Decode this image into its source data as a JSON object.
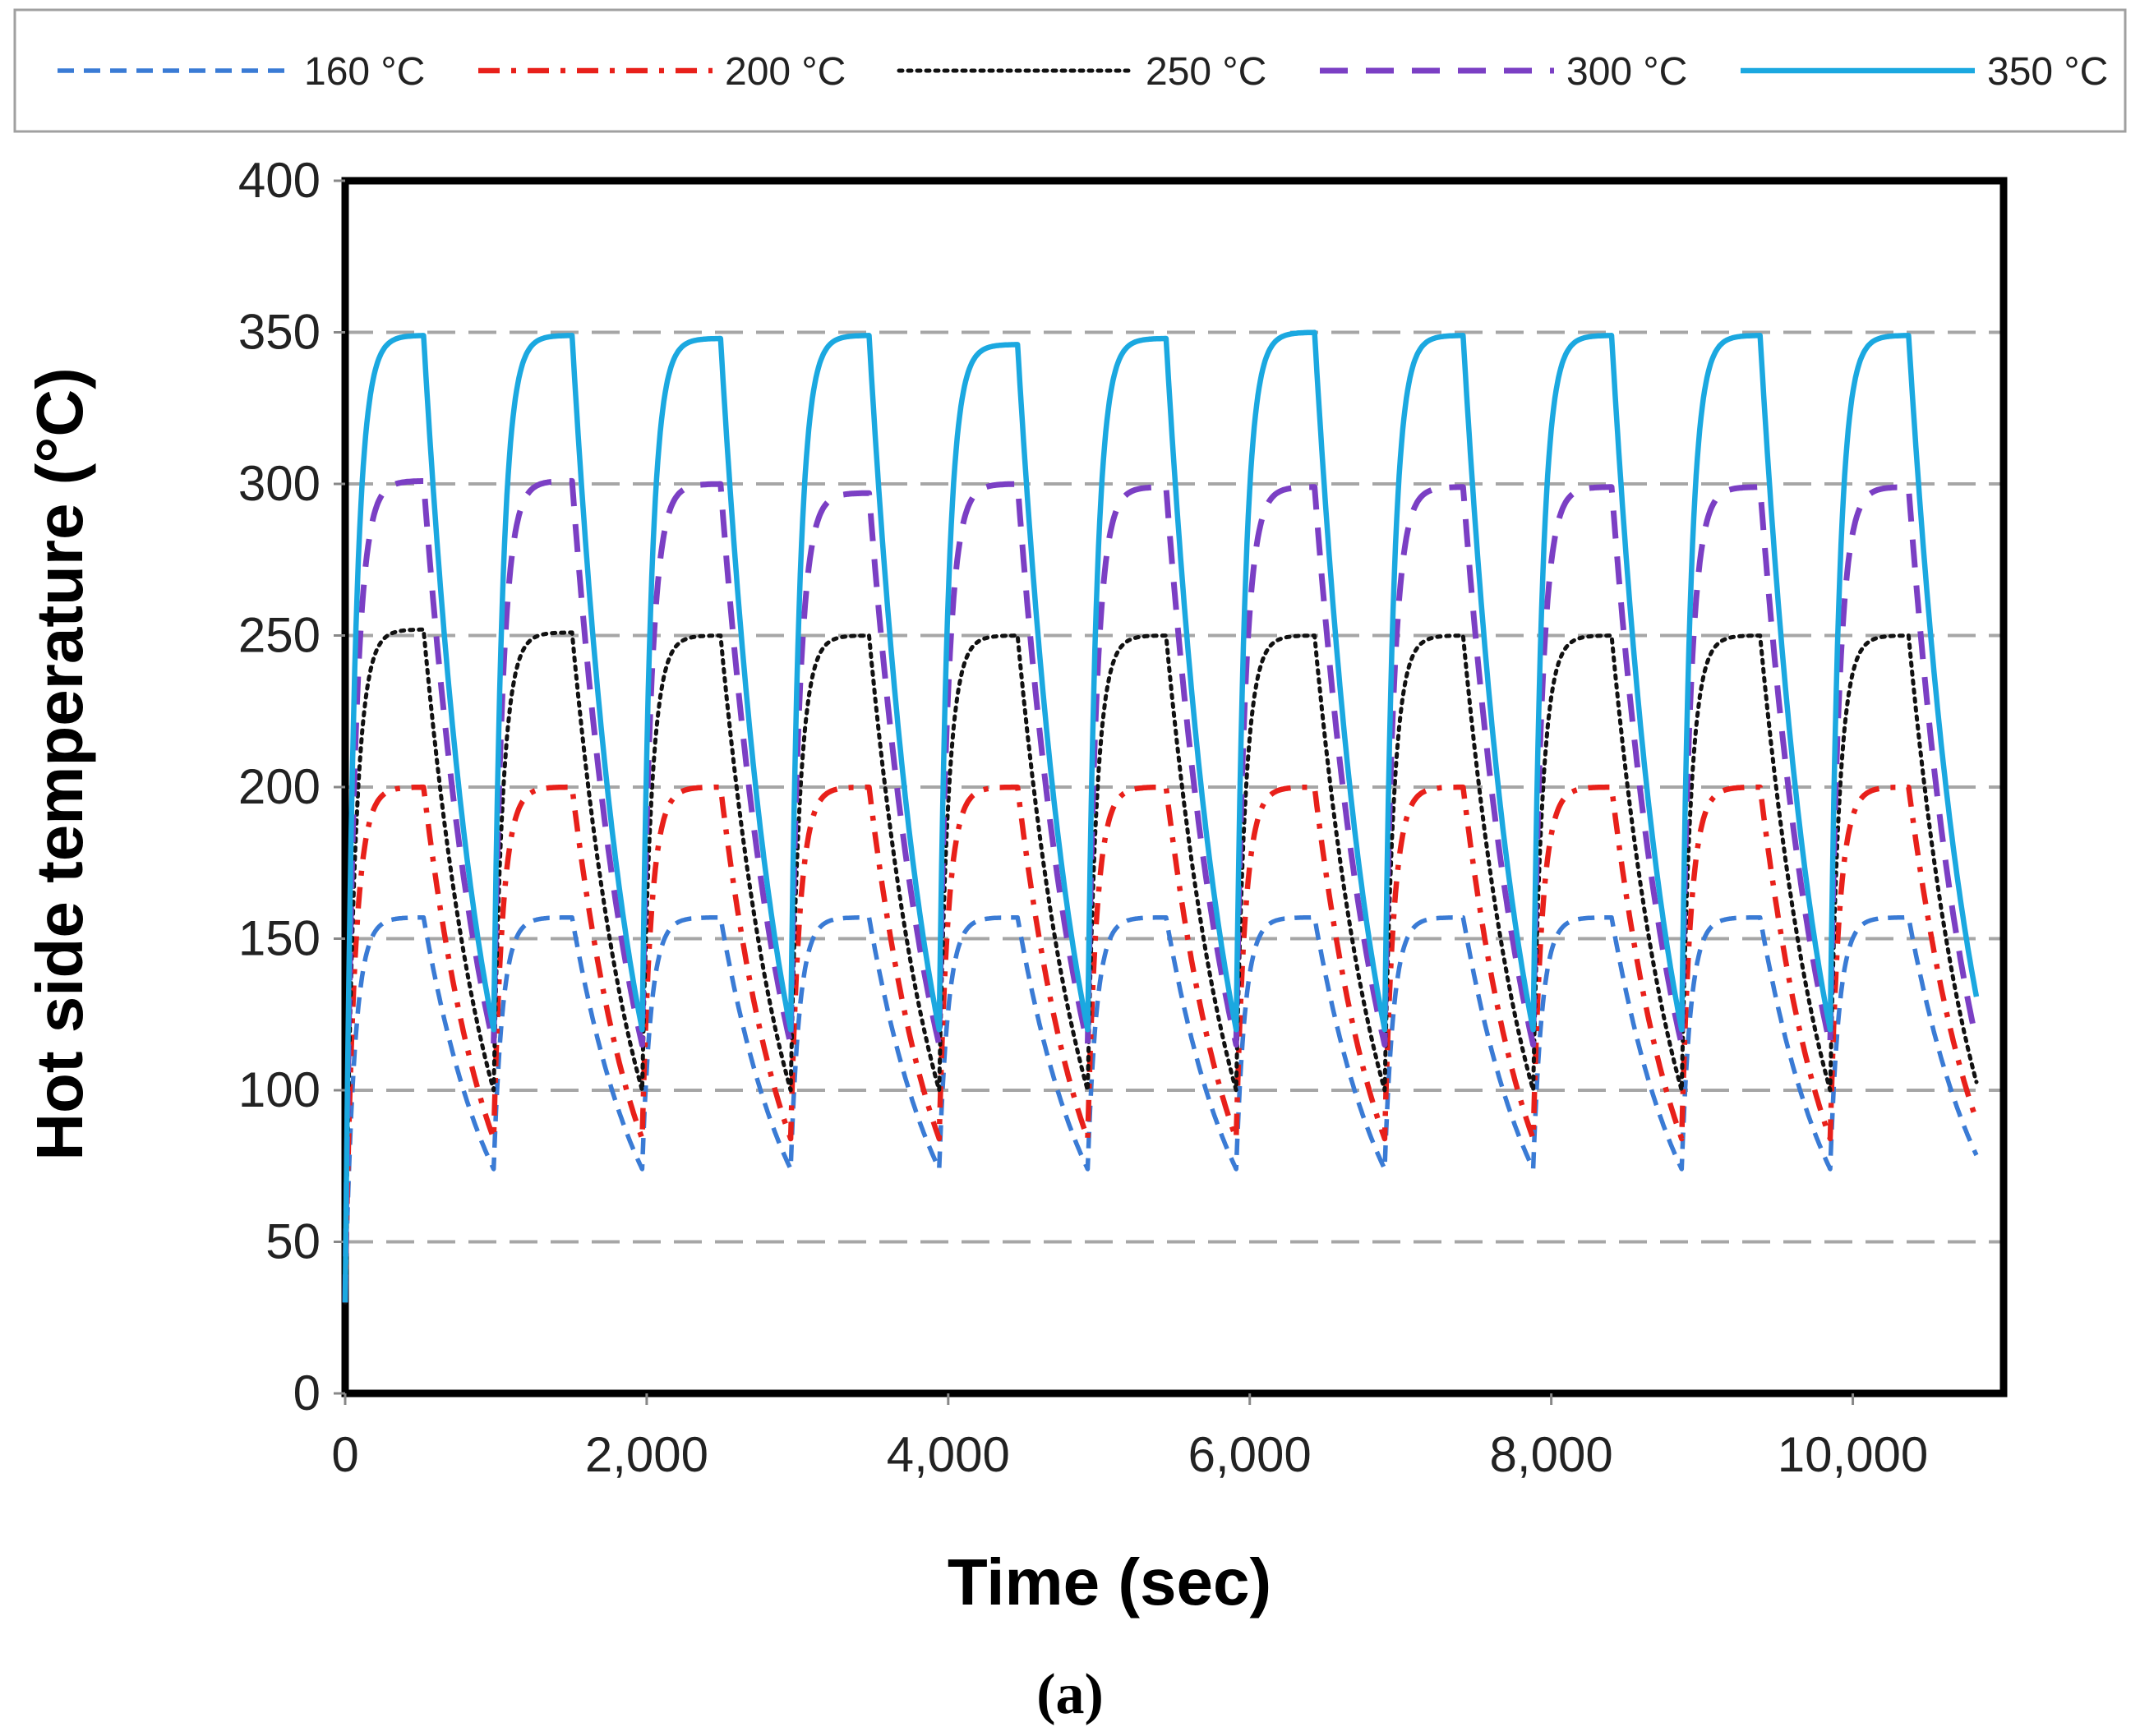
{
  "chart_data": {
    "type": "line",
    "xlabel": "Time (sec)",
    "ylabel": "Hot side temperature (°C)",
    "caption": "(a)",
    "xlim": [
      0,
      11000
    ],
    "ylim": [
      0,
      400
    ],
    "x_ticks": [
      0,
      2000,
      4000,
      6000,
      8000,
      10000
    ],
    "x_tick_labels": [
      "0",
      "2,000",
      "4,000",
      "6,000",
      "8,000",
      "10,000"
    ],
    "y_ticks": [
      0,
      50,
      100,
      150,
      200,
      250,
      300,
      350,
      400
    ],
    "y_tick_labels": [
      "0",
      "50",
      "100",
      "150",
      "200",
      "250",
      "300",
      "350",
      "400"
    ],
    "grid": "horizontal dashed",
    "legend_position": "top, outside plot",
    "cycle_period_sec": 985,
    "series": [
      {
        "name": "160 °C",
        "style": "dashed",
        "color": "#3a7bd5",
        "values": [
          30,
          157,
          157,
          157,
          157,
          157,
          157,
          157,
          157,
          157,
          157,
          157,
          74,
          74,
          74,
          74,
          74,
          74,
          74,
          74,
          74,
          74,
          77
        ]
      },
      {
        "name": "200 °C",
        "style": "dash-dot",
        "color": "#e8201a",
        "values": [
          30,
          200,
          200,
          200,
          200,
          200,
          200,
          200,
          200,
          200,
          200,
          200,
          84,
          84,
          84,
          84,
          84,
          84,
          84,
          84,
          84,
          84,
          88
        ]
      },
      {
        "name": "250 °C",
        "style": "dotted",
        "color": "#111111",
        "values": [
          30,
          252,
          251,
          250,
          250,
          250,
          250,
          250,
          250,
          250,
          250,
          250,
          100,
          100,
          100,
          100,
          100,
          100,
          100,
          100,
          100,
          100,
          100
        ]
      },
      {
        "name": "300 °C",
        "style": "long-dashed",
        "color": "#7b3fc4",
        "values": [
          30,
          301,
          301,
          300,
          297,
          300,
          299,
          299,
          299,
          299,
          299,
          299,
          115,
          115,
          115,
          115,
          115,
          115,
          115,
          115,
          115,
          115,
          113
        ]
      },
      {
        "name": "350 °C",
        "style": "solid",
        "color": "#1ba8e0",
        "values": [
          30,
          349,
          349,
          348,
          349,
          346,
          348,
          350,
          349,
          349,
          349,
          349,
          120,
          120,
          120,
          120,
          120,
          120,
          120,
          120,
          120,
          120,
          127
        ]
      }
    ]
  }
}
